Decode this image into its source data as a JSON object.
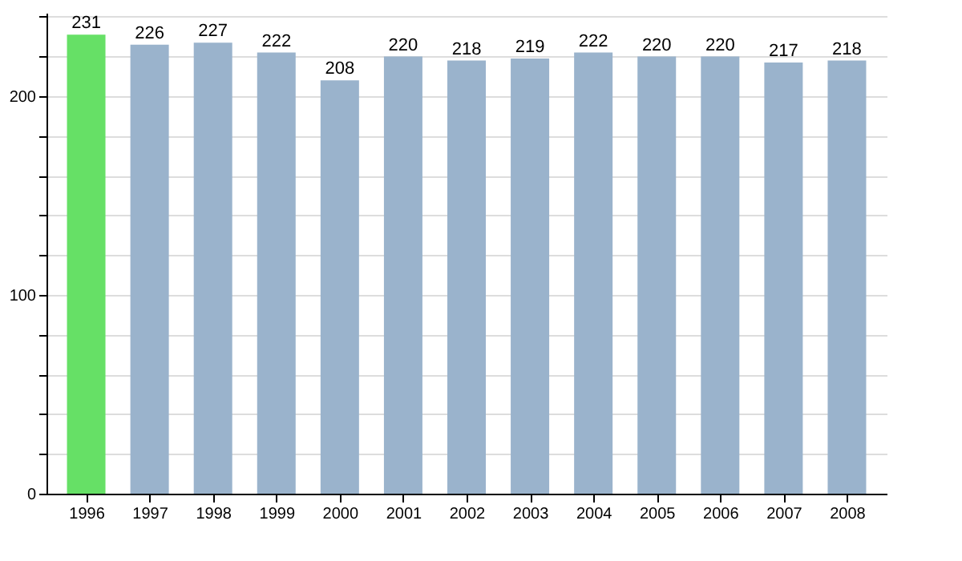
{
  "chart_data": {
    "type": "bar",
    "categories": [
      "1996",
      "1997",
      "1998",
      "1999",
      "2000",
      "2001",
      "2002",
      "2003",
      "2004",
      "2005",
      "2006",
      "2007",
      "2008"
    ],
    "values": [
      231,
      226,
      227,
      222,
      208,
      220,
      218,
      219,
      222,
      220,
      220,
      217,
      218
    ],
    "colors": [
      "#66e066",
      "#9ab3cc",
      "#9ab3cc",
      "#9ab3cc",
      "#9ab3cc",
      "#9ab3cc",
      "#9ab3cc",
      "#9ab3cc",
      "#9ab3cc",
      "#9ab3cc",
      "#9ab3cc",
      "#9ab3cc",
      "#9ab3cc"
    ],
    "data_labels": true,
    "ylim": [
      0,
      242
    ],
    "yticks": [
      0,
      {
        "value": 20,
        "label": null
      },
      {
        "value": 40,
        "label": null
      },
      {
        "value": 60,
        "label": null
      },
      {
        "value": 80,
        "label": null
      },
      100,
      {
        "value": 120,
        "label": null
      },
      {
        "value": 140,
        "label": null
      },
      {
        "value": 160,
        "label": null
      },
      {
        "value": 180,
        "label": null
      },
      200,
      {
        "value": 220,
        "label": null
      },
      {
        "value": 240,
        "label": null
      }
    ],
    "grid": "y"
  }
}
